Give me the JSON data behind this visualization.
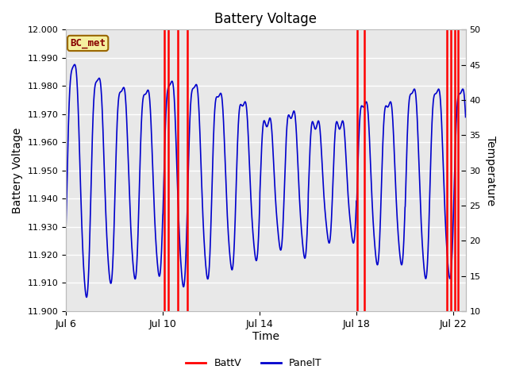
{
  "title": "Battery Voltage",
  "xlabel": "Time",
  "ylabel_left": "Battery Voltage",
  "ylabel_right": "Temperature",
  "xlim": [
    0,
    16.5
  ],
  "ylim_left": [
    11.9,
    12.0
  ],
  "ylim_right": [
    10,
    50
  ],
  "x_ticks": [
    0,
    4,
    8,
    12,
    16
  ],
  "x_tick_labels": [
    "Jul 6",
    "Jul 10",
    "Jul 14",
    "Jul 18",
    "Jul 22"
  ],
  "y_ticks_left": [
    11.9,
    11.91,
    11.92,
    11.93,
    11.94,
    11.95,
    11.96,
    11.97,
    11.98,
    11.99,
    12.0
  ],
  "y_ticks_right": [
    10,
    15,
    20,
    25,
    30,
    35,
    40,
    45,
    50
  ],
  "bg_color": "#e8e8e8",
  "grid_color": "#ffffff",
  "label_box_color": "#f5f0a0",
  "label_box_edge": "#996600",
  "label_text": "BC_met",
  "label_text_color": "#880000",
  "red_spikes": [
    4.05,
    4.22,
    4.62,
    5.02,
    12.02,
    12.32,
    15.72,
    15.88,
    16.05,
    16.18
  ],
  "batt_color": "#ff0000",
  "panel_color": "#0000cc",
  "legend_batt": "BattV",
  "legend_panel": "PanelT",
  "figsize": [
    6.4,
    4.8
  ],
  "dpi": 100
}
